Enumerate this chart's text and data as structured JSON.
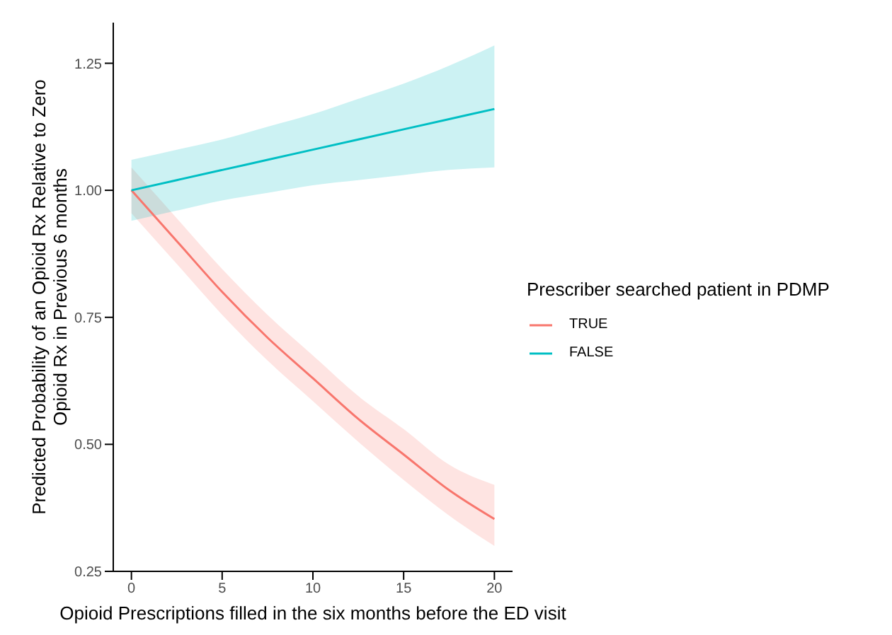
{
  "chart_data": {
    "type": "line",
    "xlabel": "Opioid Prescriptions filled in the six months before the ED visit",
    "ylabel": "Predicted Probability of an Opioid Rx Relative to Zero Opioid Rx in Previous 6 months",
    "legend_title": "Prescriber searched patient in PDMP",
    "legend": "right",
    "grid": false,
    "marker": "none",
    "line_style": "solid",
    "xlim": [
      -1,
      21
    ],
    "xticks": [
      0,
      5,
      10,
      15,
      20
    ],
    "ylim": [
      0.25,
      1.33
    ],
    "yticks": [
      0.25,
      {
        "value": 0.5,
        "label": "0.50"
      },
      0.75,
      {
        "value": 1,
        "label": "1.00"
      },
      1.25
    ],
    "x": [
      0,
      2.5,
      5,
      7.5,
      10,
      12.5,
      15,
      17.5,
      20
    ],
    "series": [
      {
        "name": "TRUE",
        "color": "#f8766d",
        "values": [
          1.0,
          0.9,
          0.8,
          0.71,
          0.63,
          0.55,
          0.48,
          0.41,
          0.353
        ],
        "lower": [
          0.955,
          0.855,
          0.755,
          0.665,
          0.585,
          0.505,
          0.43,
          0.36,
          0.3
        ],
        "upper": [
          1.045,
          0.945,
          0.845,
          0.755,
          0.675,
          0.595,
          0.53,
          0.46,
          0.42
        ]
      },
      {
        "name": "FALSE",
        "color": "#00bfc4",
        "values": [
          1.0,
          1.02,
          1.04,
          1.06,
          1.08,
          1.1,
          1.12,
          1.14,
          1.16
        ],
        "lower": [
          0.94,
          0.96,
          0.98,
          0.995,
          1.01,
          1.02,
          1.03,
          1.04,
          1.045
        ],
        "upper": [
          1.06,
          1.08,
          1.1,
          1.125,
          1.15,
          1.18,
          1.21,
          1.245,
          1.285
        ]
      }
    ]
  }
}
